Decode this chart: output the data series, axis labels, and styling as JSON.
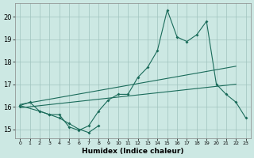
{
  "background_color": "#cce8e3",
  "grid_color": "#a0c4be",
  "line_color": "#1a6b5a",
  "xlabel": "Humidex (Indice chaleur)",
  "ylim": [
    14.6,
    20.6
  ],
  "xlim": [
    -0.5,
    23.5
  ],
  "yticks": [
    15,
    16,
    17,
    18,
    19,
    20
  ],
  "xticks": [
    0,
    1,
    2,
    3,
    4,
    5,
    6,
    7,
    8,
    9,
    10,
    11,
    12,
    13,
    14,
    15,
    16,
    17,
    18,
    19,
    20,
    21,
    22,
    23
  ],
  "main_x": [
    0,
    1,
    2,
    3,
    4,
    5,
    6,
    7,
    8,
    9,
    10,
    11,
    12,
    13,
    14,
    15,
    16,
    17,
    18,
    19,
    20,
    21,
    22,
    23
  ],
  "main_y": [
    16.05,
    16.2,
    15.8,
    15.65,
    15.65,
    15.1,
    14.95,
    15.15,
    15.8,
    16.3,
    16.55,
    16.55,
    17.3,
    17.75,
    18.5,
    20.3,
    19.1,
    18.9,
    19.2,
    19.8,
    17.0,
    16.55,
    16.2,
    15.5
  ],
  "low_x": [
    0,
    2,
    3,
    4,
    5,
    6,
    7,
    8
  ],
  "low_y": [
    16.05,
    15.8,
    15.65,
    15.5,
    15.25,
    15.0,
    14.85,
    15.15
  ],
  "trend1_x": [
    0,
    22
  ],
  "trend1_y": [
    16.1,
    17.8
  ],
  "trend2_x": [
    0,
    22
  ],
  "trend2_y": [
    15.95,
    17.0
  ]
}
